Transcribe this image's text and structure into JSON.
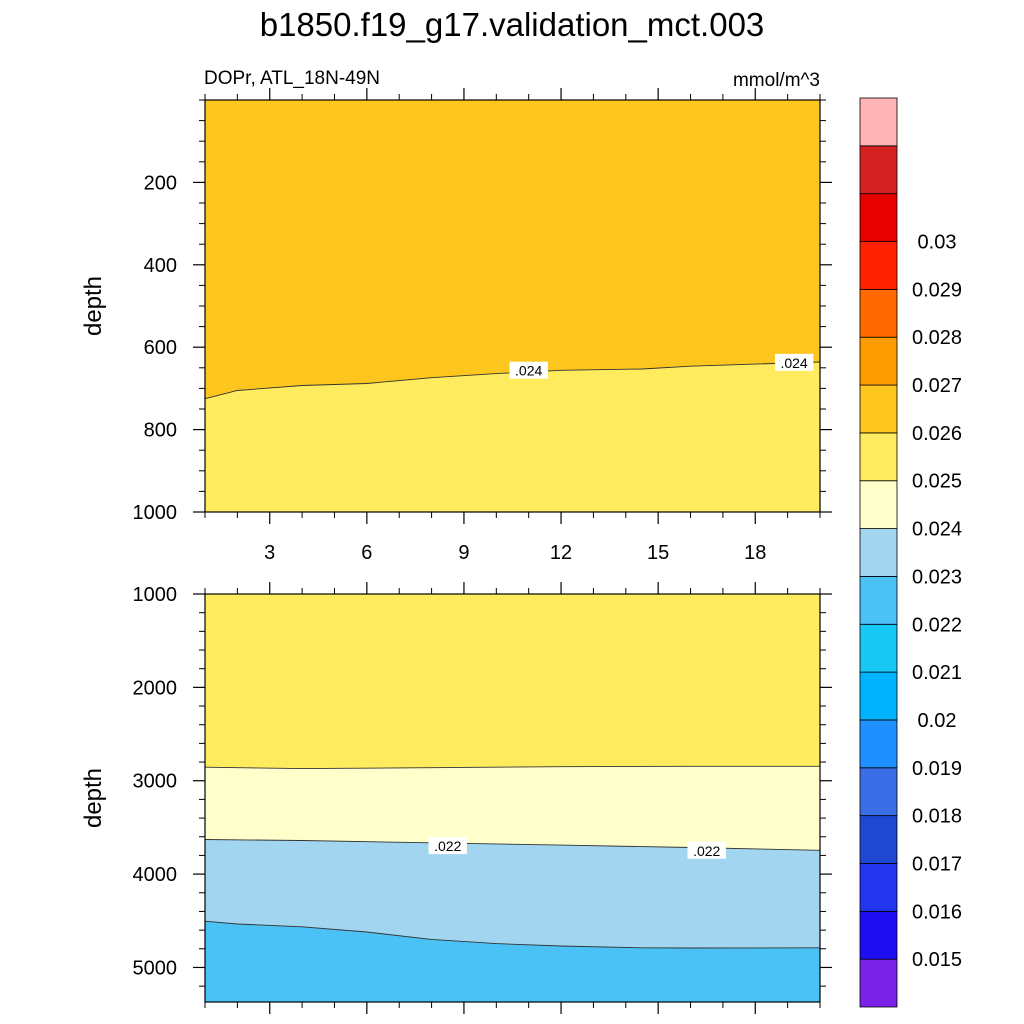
{
  "figure": {
    "title": "b1850.f19_g17.validation_mct.003",
    "left_label": "DOPr, ATL_18N-49N",
    "right_label": "mmol/m^3"
  },
  "colorbar": {
    "colors": [
      "#7b22e8",
      "#1e0cf2",
      "#2336ee",
      "#1f48d2",
      "#3a6ee6",
      "#1e90ff",
      "#00b3ff",
      "#18c8f5",
      "#4bc2f5",
      "#a2d6f0",
      "#ffffcc",
      "#ffeb5e",
      "#fdc61e",
      "#ff9d00",
      "#ff6a00",
      "#ff2200",
      "#e60000",
      "#d42020",
      "#ffb5b5"
    ],
    "levels": [
      "0.015",
      "0.016",
      "0.017",
      "0.018",
      "0.019",
      "0.02",
      "0.021",
      "0.022",
      "0.023",
      "0.024",
      "0.025",
      "0.026",
      "0.027",
      "0.028",
      "0.029",
      "0.03"
    ]
  },
  "chart_data": [
    {
      "type": "contour",
      "xlabel": "",
      "ylabel": "depth",
      "xlim": [
        1,
        20
      ],
      "ylim": [
        1000,
        0
      ],
      "yticks": [
        200,
        400,
        600,
        800,
        1000
      ],
      "xticks": [
        3,
        6,
        9,
        12,
        15,
        18
      ],
      "fill_colors": [
        "#fdc61e",
        "#ffeb5e"
      ],
      "boundaries": [
        {
          "label": ".024",
          "label_positions": [
            [
              11,
              657
            ],
            [
              19.2,
              638
            ]
          ],
          "points": [
            [
              1,
              725
            ],
            [
              2,
              705
            ],
            [
              4,
              693
            ],
            [
              6,
              688
            ],
            [
              8,
              674
            ],
            [
              10,
              664
            ],
            [
              12,
              656
            ],
            [
              14.5,
              653
            ],
            [
              16,
              646
            ],
            [
              18,
              641
            ],
            [
              20,
              636
            ]
          ]
        }
      ]
    },
    {
      "type": "contour",
      "xlabel": "",
      "ylabel": "depth",
      "xlim": [
        1,
        20
      ],
      "ylim": [
        5370,
        1000
      ],
      "yticks": [
        1000,
        2000,
        3000,
        4000,
        5000
      ],
      "xticks": [
        3,
        6,
        9,
        12,
        15,
        18
      ],
      "fill_colors": [
        "#ffeb5e",
        "#ffffcc",
        "#a2d6f0",
        "#4bc2f5"
      ],
      "boundaries": [
        {
          "label": "",
          "label_positions": [],
          "points": [
            [
              1,
              2855
            ],
            [
              4,
              2870
            ],
            [
              8,
              2860
            ],
            [
              12,
              2850
            ],
            [
              16,
              2845
            ],
            [
              20,
              2845
            ]
          ]
        },
        {
          "label": ".022",
          "label_positions": [
            [
              8.5,
              3700
            ],
            [
              16.5,
              3750
            ]
          ],
          "points": [
            [
              1,
              3630
            ],
            [
              4,
              3640
            ],
            [
              8,
              3665
            ],
            [
              12,
              3690
            ],
            [
              16,
              3715
            ],
            [
              20,
              3745
            ]
          ]
        },
        {
          "label": "",
          "label_positions": [],
          "points": [
            [
              1,
              4505
            ],
            [
              2,
              4535
            ],
            [
              4,
              4565
            ],
            [
              6,
              4620
            ],
            [
              8,
              4700
            ],
            [
              10,
              4745
            ],
            [
              12,
              4770
            ],
            [
              14.5,
              4790
            ],
            [
              16,
              4792
            ],
            [
              20,
              4790
            ]
          ]
        }
      ]
    }
  ]
}
